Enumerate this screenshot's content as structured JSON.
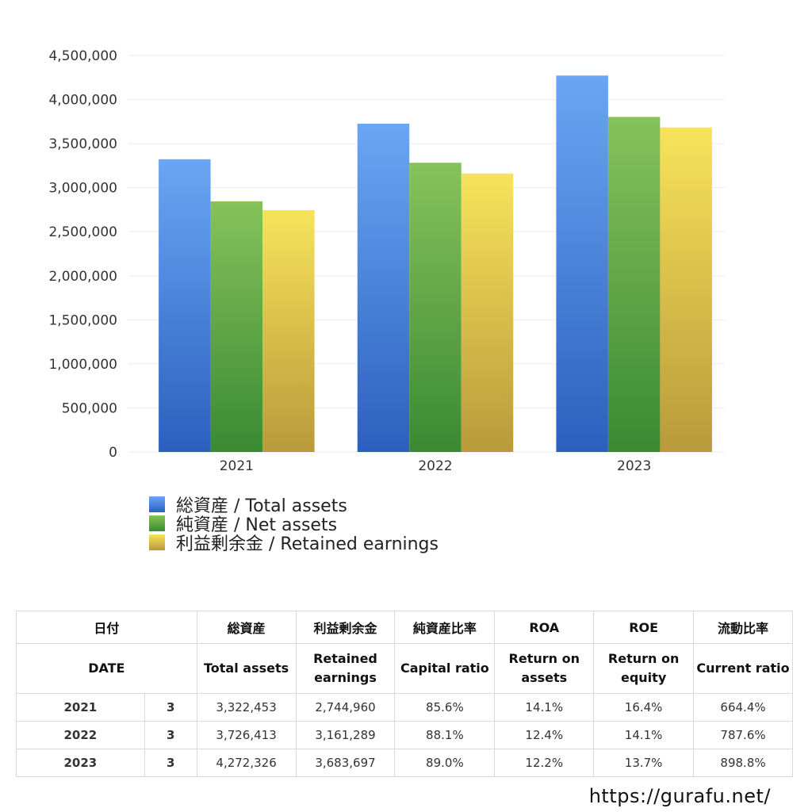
{
  "chart_data": {
    "type": "bar",
    "categories": [
      "2021",
      "2022",
      "2023"
    ],
    "series": [
      {
        "name": "総資産 / Total assets",
        "values": [
          3322453,
          3726413,
          4272326
        ],
        "color_top": "#6aa6f3",
        "color_bottom": "#2c60bf"
      },
      {
        "name": "純資産 / Net assets",
        "values": [
          2844000,
          3283000,
          3803000
        ],
        "color_top": "#86c25a",
        "color_bottom": "#3a8a34"
      },
      {
        "name": "利益剰余金 / Retained earnings",
        "values": [
          2744960,
          3161289,
          3683697
        ],
        "color_top": "#f7e35a",
        "color_bottom": "#b89a3a"
      }
    ],
    "ylim": [
      0,
      4500000
    ],
    "yticks": [
      "0",
      "500,000",
      "1,000,000",
      "1,500,000",
      "2,000,000",
      "2,500,000",
      "3,000,000",
      "3,500,000",
      "4,000,000",
      "4,500,000"
    ],
    "grid": true,
    "legend_position": "bottom-left"
  },
  "table": {
    "header_jp": {
      "date": "日付",
      "total_assets": "総資産",
      "retained": "利益剰余金",
      "capital_ratio": "純資産比率",
      "roa": "ROA",
      "roe": "ROE",
      "current_ratio": "流動比率"
    },
    "header_en": {
      "date": "DATE",
      "total_assets": "Total assets",
      "retained": "Retained earnings",
      "capital_ratio": "Capital ratio",
      "roa": "Return on assets",
      "roe": "Return on equity",
      "current_ratio": "Current ratio"
    },
    "rows": [
      {
        "year": "2021",
        "month": "3",
        "total_assets": "3,322,453",
        "retained": "2,744,960",
        "capital_ratio": "85.6%",
        "roa": "14.1%",
        "roe": "16.4%",
        "current_ratio": "664.4%"
      },
      {
        "year": "2022",
        "month": "3",
        "total_assets": "3,726,413",
        "retained": "3,161,289",
        "capital_ratio": "88.1%",
        "roa": "12.4%",
        "roe": "14.1%",
        "current_ratio": "787.6%"
      },
      {
        "year": "2023",
        "month": "3",
        "total_assets": "4,272,326",
        "retained": "3,683,697",
        "capital_ratio": "89.0%",
        "roa": "12.2%",
        "roe": "13.7%",
        "current_ratio": "898.8%"
      }
    ]
  },
  "site_url": "https://gurafu.net/"
}
